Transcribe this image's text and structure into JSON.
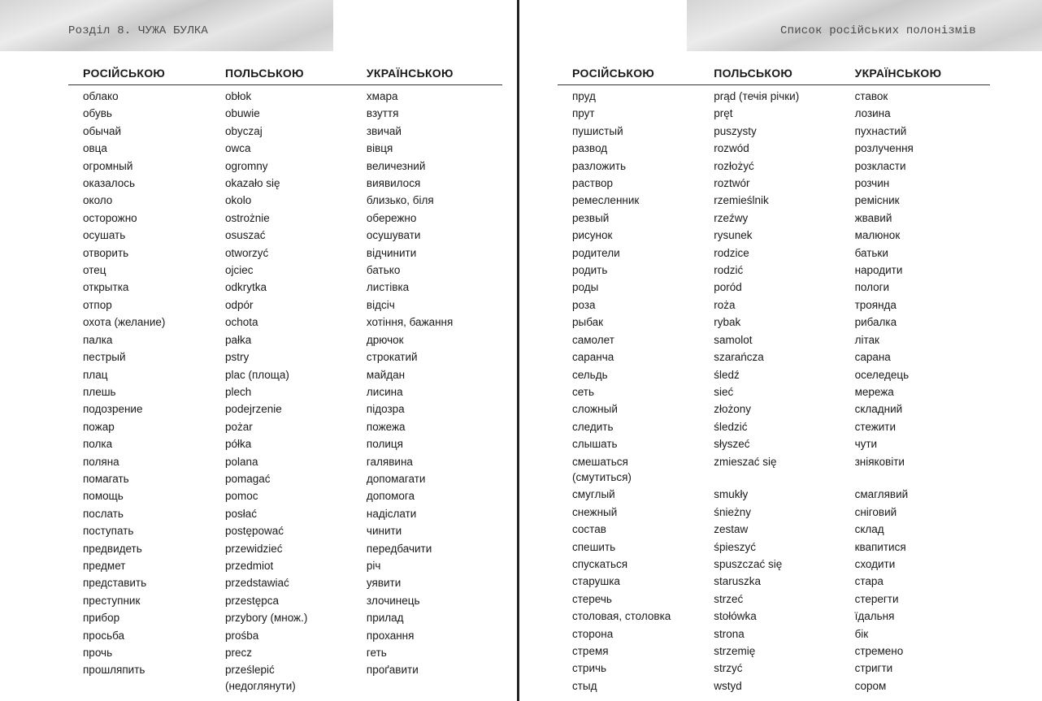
{
  "left_page": {
    "running_head": "Розділ 8. ЧУЖА БУЛКА",
    "headers": [
      "РОСІЙСЬКОЮ",
      "ПОЛЬСЬКОЮ",
      "УКРАЇНСЬКОЮ"
    ],
    "rows": [
      [
        "облако",
        "obłok",
        "хмара"
      ],
      [
        "обувь",
        "obuwie",
        "взуття"
      ],
      [
        "обычай",
        "obyczaj",
        "звичай"
      ],
      [
        "овца",
        "owca",
        "вівця"
      ],
      [
        "огромный",
        "ogromny",
        "величезний"
      ],
      [
        "оказалось",
        "okazało się",
        "виявилося"
      ],
      [
        "около",
        "okolo",
        "близько, біля"
      ],
      [
        "осторожно",
        "ostrożnie",
        "обережно"
      ],
      [
        "осушать",
        "osuszać",
        "осушувати"
      ],
      [
        "отворить",
        "otworzyć",
        "відчинити"
      ],
      [
        "отец",
        "ojciec",
        "батько"
      ],
      [
        "открытка",
        "odkrytka",
        "листівка"
      ],
      [
        "отпор",
        "odpór",
        "відсіч"
      ],
      [
        "охота (желание)",
        "ochota",
        "хотіння, бажання"
      ],
      [
        "палка",
        "pałka",
        "дрючок"
      ],
      [
        "пестрый",
        "pstry",
        "строкатий"
      ],
      [
        "плац",
        "plac (площа)",
        "майдан"
      ],
      [
        "плешь",
        "plech",
        "лисина"
      ],
      [
        "подозрение",
        "podejrzenie",
        "підозра"
      ],
      [
        "пожар",
        "pożar",
        "пожежа"
      ],
      [
        "полка",
        "półka",
        "полиця"
      ],
      [
        "поляна",
        "polana",
        "галявина"
      ],
      [
        "помагать",
        "pomagać",
        "допомагати"
      ],
      [
        "помощь",
        "pomoc",
        "допомога"
      ],
      [
        "послать",
        "posłać",
        "надіслати"
      ],
      [
        "поступать",
        "postępować",
        "чинити"
      ],
      [
        "предвидеть",
        "przewidzieć",
        "передбачити"
      ],
      [
        "предмет",
        "przedmiot",
        "річ"
      ],
      [
        "представить",
        "przedstawiać",
        "уявити"
      ],
      [
        "преступник",
        "przestępca",
        "злочинець"
      ],
      [
        "прибор",
        "przybory (множ.)",
        "прилад"
      ],
      [
        "просьба",
        "prośba",
        "прохання"
      ],
      [
        "прочь",
        "precz",
        "геть"
      ],
      [
        "прошляпить",
        "prześlepić\n(недоглянути)",
        "проґавити"
      ]
    ]
  },
  "right_page": {
    "running_head": "Список російських полонізмів",
    "headers": [
      "РОСІЙСЬКОЮ",
      "ПОЛЬСЬКОЮ",
      "УКРАЇНСЬКОЮ"
    ],
    "rows": [
      [
        "пруд",
        "prąd (течія річки)",
        "ставок"
      ],
      [
        "прут",
        "pręt",
        "лозина"
      ],
      [
        "пушистый",
        "puszysty",
        "пухнастий"
      ],
      [
        "развод",
        "rozwód",
        "розлучення"
      ],
      [
        "разложить",
        "rozłożyć",
        "розкласти"
      ],
      [
        "раствор",
        "roztwór",
        "розчин"
      ],
      [
        "ремесленник",
        "rzemieślnik",
        "ремісник"
      ],
      [
        "резвый",
        "rzeźwy",
        "жвавий"
      ],
      [
        "рисунок",
        "rysunek",
        "малюнок"
      ],
      [
        "родители",
        "rodzice",
        "батьки"
      ],
      [
        "родить",
        "rodzić",
        "народити"
      ],
      [
        "роды",
        "poród",
        "пологи"
      ],
      [
        "роза",
        "roża",
        "троянда"
      ],
      [
        "рыбак",
        "rybak",
        "рибалка"
      ],
      [
        "самолет",
        "samolot",
        "літак"
      ],
      [
        "саранча",
        "szarańcza",
        "сарана"
      ],
      [
        "сельдь",
        "śledź",
        "оселедець"
      ],
      [
        "сеть",
        "sieć",
        "мережа"
      ],
      [
        "сложный",
        "złożony",
        "складний"
      ],
      [
        "следить",
        "śledzić",
        "стежити"
      ],
      [
        "слышать",
        "słyszeć",
        "чути"
      ],
      [
        "смешаться\n(смутиться)",
        "zmieszać się",
        "зніяковіти"
      ],
      [
        "смуглый",
        "smukły",
        "смаглявий"
      ],
      [
        "снежный",
        "śnieżny",
        "сніговий"
      ],
      [
        "состав",
        "zestaw",
        "склад"
      ],
      [
        "спешить",
        "śpieszyć",
        "квапитися"
      ],
      [
        "спускаться",
        "spuszczać się",
        "сходити"
      ],
      [
        "старушка",
        "staruszka",
        "стара"
      ],
      [
        "стеречь",
        "strzeć",
        "стерегти"
      ],
      [
        "столовая, столовка",
        "stołówka",
        "їдальня"
      ],
      [
        "сторона",
        "strona",
        "бік"
      ],
      [
        "стремя",
        "strzemię",
        "стремено"
      ],
      [
        "стричь",
        "strzyć",
        "стригти"
      ],
      [
        "стыд",
        "wstyd",
        "сором"
      ]
    ]
  }
}
